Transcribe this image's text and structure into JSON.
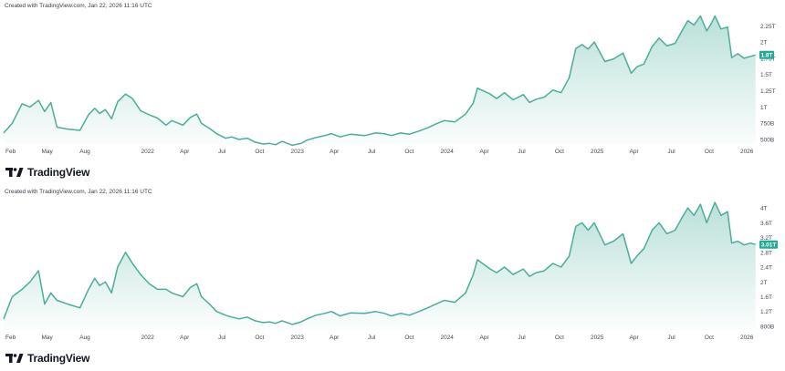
{
  "colors": {
    "line": "#4aae9b",
    "fill_top": "#4aae9b",
    "tag": "#22ab94",
    "grid": "#f0f3fa"
  },
  "brand": {
    "name": "TradingView",
    "icon": "tradingview-logo-icon"
  },
  "chart_data": [
    {
      "type": "area",
      "title": "",
      "created_label": "Created with TradingView.com, Jan 22, 2026 11:16 UTC",
      "x_ticks": [
        "Feb",
        "May",
        "Aug",
        "2022",
        "Apr",
        "Jul",
        "Oct",
        "2023",
        "Apr",
        "Jul",
        "Oct",
        "2024",
        "Apr",
        "Jul",
        "Oct",
        "2025",
        "Apr",
        "Jul",
        "Oct",
        "2026"
      ],
      "y_ticks": [
        "2.25T",
        "2T",
        "1.75T",
        "1.5T",
        "1.25T",
        "1T",
        "750B",
        "500B"
      ],
      "y_tick_values": [
        2250,
        2000,
        1750,
        1500,
        1250,
        1000,
        750,
        500
      ],
      "ylim": [
        430,
        2450
      ],
      "last_value_label": "1.8T",
      "last_value": 1800,
      "grid": false,
      "series": [
        {
          "x": [
            "2021-01-15",
            "2021-02-05",
            "2021-03-01",
            "2021-03-20",
            "2021-04-10",
            "2021-04-25",
            "2021-05-10",
            "2021-05-25",
            "2021-06-20",
            "2021-07-20",
            "2021-08-10",
            "2021-08-25",
            "2021-09-06",
            "2021-09-20",
            "2021-10-05",
            "2021-10-20",
            "2021-11-08",
            "2021-11-25",
            "2021-12-15",
            "2022-01-05",
            "2022-01-25",
            "2022-02-15",
            "2022-03-01",
            "2022-03-28",
            "2022-04-15",
            "2022-05-01",
            "2022-05-12",
            "2022-06-01",
            "2022-06-18",
            "2022-07-10",
            "2022-07-25",
            "2022-08-12",
            "2022-09-01",
            "2022-09-20",
            "2022-10-10",
            "2022-10-25",
            "2022-11-09",
            "2022-11-25",
            "2022-12-20",
            "2023-01-10",
            "2023-01-25",
            "2023-02-15",
            "2023-03-10",
            "2023-03-25",
            "2023-04-15",
            "2023-05-10",
            "2023-06-15",
            "2023-07-10",
            "2023-08-01",
            "2023-08-18",
            "2023-09-10",
            "2023-10-01",
            "2023-10-25",
            "2023-11-15",
            "2023-12-05",
            "2023-12-25",
            "2024-01-20",
            "2024-02-15",
            "2024-03-05",
            "2024-03-15",
            "2024-04-15",
            "2024-05-01",
            "2024-05-20",
            "2024-06-10",
            "2024-07-05",
            "2024-07-20",
            "2024-08-05",
            "2024-08-25",
            "2024-09-15",
            "2024-10-05",
            "2024-10-25",
            "2024-11-10",
            "2024-11-25",
            "2024-12-10",
            "2024-12-25",
            "2025-01-20",
            "2025-02-10",
            "2025-03-05",
            "2025-03-25",
            "2025-04-08",
            "2025-04-25",
            "2025-05-15",
            "2025-06-01",
            "2025-06-20",
            "2025-07-10",
            "2025-07-25",
            "2025-08-10",
            "2025-08-25",
            "2025-09-10",
            "2025-09-25",
            "2025-10-06",
            "2025-10-15",
            "2025-10-30",
            "2025-11-15",
            "2025-11-25",
            "2025-12-10",
            "2025-12-25",
            "2026-01-10",
            "2026-01-22"
          ],
          "y": [
            600,
            750,
            1050,
            1000,
            1100,
            930,
            1070,
            690,
            660,
            640,
            880,
            980,
            900,
            960,
            820,
            1080,
            1200,
            1130,
            940,
            880,
            830,
            720,
            790,
            720,
            840,
            890,
            750,
            670,
            590,
            520,
            540,
            500,
            520,
            460,
            430,
            440,
            420,
            470,
            410,
            440,
            490,
            530,
            560,
            590,
            540,
            580,
            560,
            600,
            590,
            560,
            600,
            580,
            630,
            680,
            740,
            790,
            770,
            890,
            1060,
            1290,
            1200,
            1130,
            1220,
            1110,
            1190,
            1070,
            1120,
            1150,
            1260,
            1220,
            1450,
            1900,
            1960,
            1890,
            2000,
            1700,
            1740,
            1830,
            1520,
            1620,
            1660,
            1930,
            2060,
            1940,
            1980,
            2150,
            2330,
            2260,
            2400,
            2170,
            2280,
            2400,
            2200,
            2230,
            1760,
            1820,
            1750,
            1780,
            1800
          ]
        }
      ]
    },
    {
      "type": "area",
      "title": "",
      "created_label": "Created with TradingView.com, Jan 22, 2026 11:16 UTC",
      "x_ticks": [
        "Feb",
        "May",
        "Aug",
        "2022",
        "Apr",
        "Jul",
        "Oct",
        "2023",
        "Apr",
        "Jul",
        "Oct",
        "2024",
        "Apr",
        "Jul",
        "Oct",
        "2025",
        "Apr",
        "Jul",
        "Oct",
        "2026"
      ],
      "y_ticks": [
        "4T",
        "3.6T",
        "3.2T",
        "2.8T",
        "2.4T",
        "2T",
        "1.6T",
        "1.2T",
        "800B"
      ],
      "y_tick_values": [
        4000,
        3600,
        3200,
        2800,
        2400,
        2000,
        1600,
        1200,
        800
      ],
      "ylim": [
        700,
        4250
      ],
      "last_value_label": "3.01T",
      "last_value": 3010,
      "grid": false,
      "series": [
        {
          "x": [
            "2021-01-15",
            "2021-02-05",
            "2021-03-01",
            "2021-03-20",
            "2021-04-10",
            "2021-04-25",
            "2021-05-10",
            "2021-05-25",
            "2021-06-20",
            "2021-07-20",
            "2021-08-10",
            "2021-08-25",
            "2021-09-06",
            "2021-09-20",
            "2021-10-05",
            "2021-10-20",
            "2021-11-08",
            "2021-11-25",
            "2021-12-15",
            "2022-01-05",
            "2022-01-25",
            "2022-02-15",
            "2022-03-01",
            "2022-03-28",
            "2022-04-15",
            "2022-05-01",
            "2022-05-12",
            "2022-06-01",
            "2022-06-18",
            "2022-07-10",
            "2022-07-25",
            "2022-08-12",
            "2022-09-01",
            "2022-09-20",
            "2022-10-10",
            "2022-10-25",
            "2022-11-09",
            "2022-11-25",
            "2022-12-20",
            "2023-01-10",
            "2023-01-25",
            "2023-02-15",
            "2023-03-10",
            "2023-03-25",
            "2023-04-15",
            "2023-05-10",
            "2023-06-15",
            "2023-07-10",
            "2023-08-01",
            "2023-08-18",
            "2023-09-10",
            "2023-10-01",
            "2023-10-25",
            "2023-11-15",
            "2023-12-05",
            "2023-12-25",
            "2024-01-20",
            "2024-02-15",
            "2024-03-05",
            "2024-03-15",
            "2024-04-15",
            "2024-05-01",
            "2024-05-20",
            "2024-06-10",
            "2024-07-05",
            "2024-07-20",
            "2024-08-05",
            "2024-08-25",
            "2024-09-15",
            "2024-10-05",
            "2024-10-25",
            "2024-11-10",
            "2024-11-25",
            "2024-12-10",
            "2024-12-25",
            "2025-01-20",
            "2025-02-10",
            "2025-03-05",
            "2025-03-25",
            "2025-04-08",
            "2025-04-25",
            "2025-05-15",
            "2025-06-01",
            "2025-06-20",
            "2025-07-10",
            "2025-07-25",
            "2025-08-10",
            "2025-08-25",
            "2025-09-10",
            "2025-09-25",
            "2025-10-06",
            "2025-10-15",
            "2025-10-30",
            "2025-11-15",
            "2025-11-25",
            "2025-12-10",
            "2025-12-25",
            "2026-01-10",
            "2026-01-22"
          ],
          "y": [
            1000,
            1600,
            1800,
            2000,
            2300,
            1400,
            1700,
            1500,
            1400,
            1300,
            1800,
            2100,
            1900,
            2000,
            1700,
            2400,
            2800,
            2500,
            2200,
            1950,
            1800,
            1800,
            1700,
            1600,
            1850,
            1950,
            1600,
            1400,
            1200,
            1100,
            1050,
            1000,
            1050,
            950,
            900,
            920,
            880,
            950,
            850,
            920,
            1000,
            1100,
            1150,
            1200,
            1080,
            1160,
            1150,
            1200,
            1150,
            1080,
            1150,
            1100,
            1200,
            1300,
            1400,
            1500,
            1450,
            1700,
            2200,
            2600,
            2350,
            2250,
            2400,
            2200,
            2350,
            2150,
            2250,
            2300,
            2500,
            2400,
            2700,
            3500,
            3600,
            3400,
            3600,
            3000,
            3100,
            3300,
            2500,
            2700,
            2900,
            3400,
            3600,
            3300,
            3400,
            3700,
            4000,
            3800,
            4100,
            3600,
            3900,
            4150,
            3800,
            3900,
            3050,
            3100,
            3000,
            3050,
            3010
          ]
        }
      ]
    }
  ]
}
